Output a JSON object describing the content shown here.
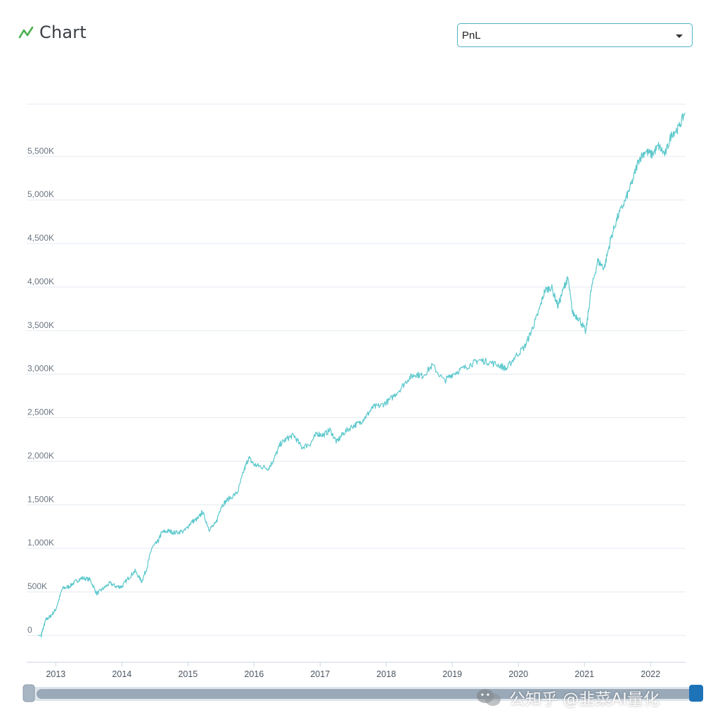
{
  "header": {
    "title": "Chart"
  },
  "select": {
    "value": "PnL"
  },
  "watermark": {
    "text": "公知乎 @韭菜AI量化"
  },
  "colors": {
    "line": "#5cc8cc",
    "accent": "#4caf50",
    "grid": "#e3e9f0",
    "select_border": "#4fb3c8",
    "scrollbar": "#9aa9b8"
  },
  "chart_data": {
    "type": "line",
    "title": "Chart",
    "series": [
      {
        "name": "PnL",
        "points": [
          [
            2012.73,
            0
          ],
          [
            2012.78,
            0
          ],
          [
            2012.8,
            60
          ],
          [
            2012.85,
            180
          ],
          [
            2012.92,
            220
          ],
          [
            2013.0,
            300
          ],
          [
            2013.1,
            540
          ],
          [
            2013.2,
            560
          ],
          [
            2013.3,
            620
          ],
          [
            2013.4,
            660
          ],
          [
            2013.52,
            640
          ],
          [
            2013.62,
            480
          ],
          [
            2013.72,
            540
          ],
          [
            2013.82,
            600
          ],
          [
            2013.92,
            560
          ],
          [
            2014.0,
            560
          ],
          [
            2014.1,
            660
          ],
          [
            2014.2,
            740
          ],
          [
            2014.3,
            620
          ],
          [
            2014.38,
            780
          ],
          [
            2014.45,
            1000
          ],
          [
            2014.55,
            1080
          ],
          [
            2014.6,
            1180
          ],
          [
            2014.7,
            1200
          ],
          [
            2014.8,
            1180
          ],
          [
            2014.95,
            1200
          ],
          [
            2015.05,
            1300
          ],
          [
            2015.15,
            1340
          ],
          [
            2015.22,
            1420
          ],
          [
            2015.32,
            1220
          ],
          [
            2015.42,
            1280
          ],
          [
            2015.5,
            1480
          ],
          [
            2015.6,
            1560
          ],
          [
            2015.75,
            1640
          ],
          [
            2015.85,
            1900
          ],
          [
            2015.92,
            2040
          ],
          [
            2016.0,
            1960
          ],
          [
            2016.1,
            1940
          ],
          [
            2016.22,
            1920
          ],
          [
            2016.3,
            2020
          ],
          [
            2016.4,
            2200
          ],
          [
            2016.5,
            2260
          ],
          [
            2016.6,
            2300
          ],
          [
            2016.72,
            2160
          ],
          [
            2016.85,
            2200
          ],
          [
            2016.95,
            2320
          ],
          [
            2017.05,
            2300
          ],
          [
            2017.15,
            2360
          ],
          [
            2017.25,
            2220
          ],
          [
            2017.35,
            2320
          ],
          [
            2017.48,
            2400
          ],
          [
            2017.6,
            2440
          ],
          [
            2017.7,
            2520
          ],
          [
            2017.8,
            2620
          ],
          [
            2017.92,
            2640
          ],
          [
            2018.05,
            2700
          ],
          [
            2018.2,
            2820
          ],
          [
            2018.35,
            2960
          ],
          [
            2018.45,
            3000
          ],
          [
            2018.55,
            2980
          ],
          [
            2018.7,
            3100
          ],
          [
            2018.88,
            2920
          ],
          [
            2019.0,
            3000
          ],
          [
            2019.15,
            3060
          ],
          [
            2019.3,
            3120
          ],
          [
            2019.4,
            3160
          ],
          [
            2019.55,
            3140
          ],
          [
            2019.72,
            3100
          ],
          [
            2019.82,
            3060
          ],
          [
            2019.95,
            3200
          ],
          [
            2020.1,
            3320
          ],
          [
            2020.2,
            3500
          ],
          [
            2020.3,
            3700
          ],
          [
            2020.4,
            3960
          ],
          [
            2020.5,
            4000
          ],
          [
            2020.6,
            3780
          ],
          [
            2020.7,
            4020
          ],
          [
            2020.75,
            4100
          ],
          [
            2020.82,
            3700
          ],
          [
            2020.92,
            3640
          ],
          [
            2021.02,
            3480
          ],
          [
            2021.1,
            3960
          ],
          [
            2021.2,
            4300
          ],
          [
            2021.3,
            4220
          ],
          [
            2021.4,
            4560
          ],
          [
            2021.5,
            4800
          ],
          [
            2021.62,
            5000
          ],
          [
            2021.72,
            5200
          ],
          [
            2021.82,
            5460
          ],
          [
            2021.92,
            5560
          ],
          [
            2022.02,
            5520
          ],
          [
            2022.12,
            5620
          ],
          [
            2022.22,
            5520
          ],
          [
            2022.32,
            5760
          ],
          [
            2022.42,
            5820
          ],
          [
            2022.52,
            6000
          ]
        ]
      }
    ],
    "xlim": [
      2012.56,
      2022.53
    ],
    "ylim": [
      -300,
      6100
    ],
    "y_ticks": [
      0,
      500,
      1000,
      1500,
      2000,
      2500,
      3000,
      3500,
      4000,
      4500,
      5000,
      5500
    ],
    "y_tick_labels": [
      "0",
      "500K",
      "1,000K",
      "1,500K",
      "2,000K",
      "2,500K",
      "3,000K",
      "3,500K",
      "4,000K",
      "4,500K",
      "5,000K",
      "5,500K"
    ],
    "x_ticks": [
      2013,
      2014,
      2015,
      2016,
      2017,
      2018,
      2019,
      2020,
      2021,
      2022
    ],
    "x_tick_labels": [
      "2013",
      "2014",
      "2015",
      "2016",
      "2017",
      "2018",
      "2019",
      "2020",
      "2021",
      "2022"
    ],
    "grid": true,
    "legend": "none"
  }
}
